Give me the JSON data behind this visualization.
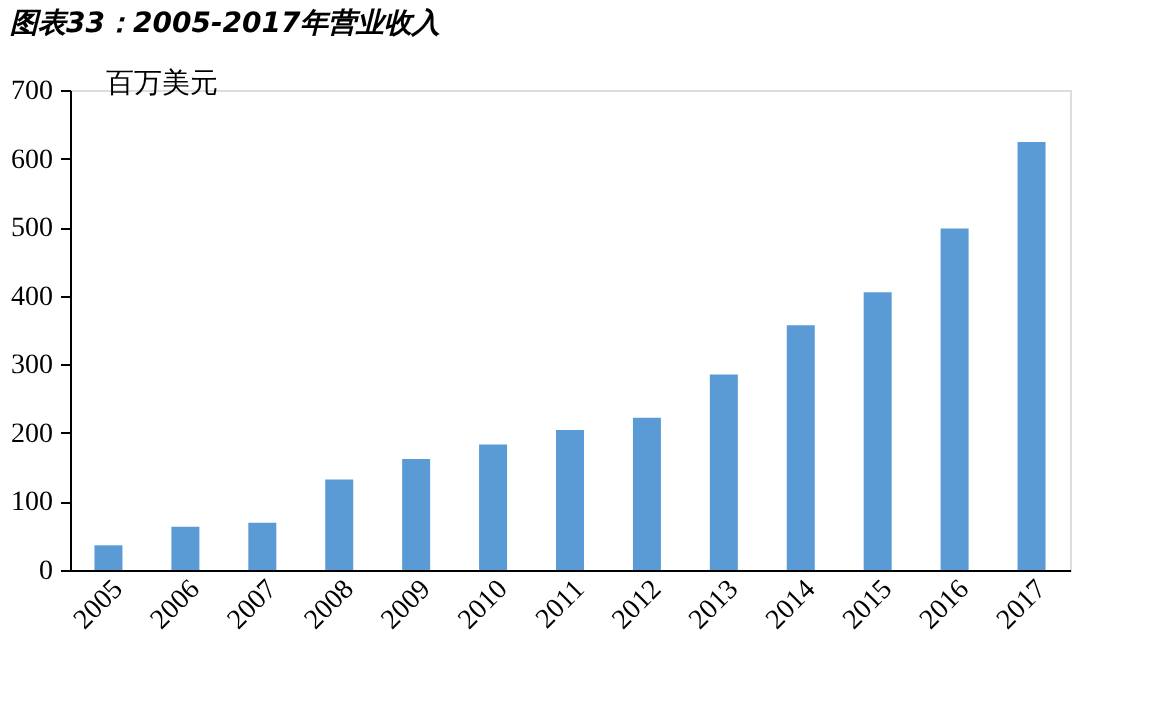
{
  "chart_data": {
    "type": "bar",
    "title": "图表33：2005-2017年营业收入",
    "ylabel": "百万美元",
    "categories": [
      "2005",
      "2006",
      "2007",
      "2008",
      "2009",
      "2010",
      "2011",
      "2012",
      "2013",
      "2014",
      "2015",
      "2016",
      "2017"
    ],
    "values": [
      36,
      63,
      69,
      132,
      162,
      183,
      204,
      222,
      285,
      357,
      405,
      498,
      624
    ],
    "color": "#5b9bd5",
    "ylim": [
      0,
      700
    ],
    "yticks": [
      0,
      100,
      200,
      300,
      400,
      500,
      600,
      700
    ],
    "grid": false
  }
}
